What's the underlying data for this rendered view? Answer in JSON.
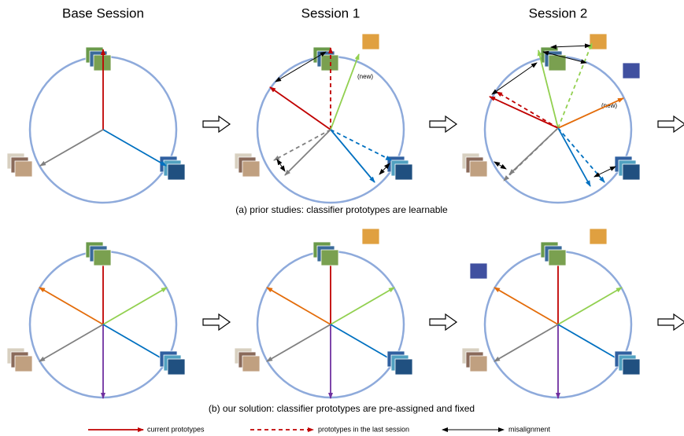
{
  "columns": {
    "titles": [
      "Base Session",
      "Session 1",
      "Session 2"
    ]
  },
  "annotations": {
    "new_session1": "(new)",
    "new_session2": "(new)"
  },
  "captions": {
    "row_a": "(a) prior studies: classifier prototypes are learnable",
    "row_b": "(b) our solution: classifier prototypes are pre-assigned and fixed"
  },
  "legend": {
    "current": "current prototypes",
    "last": "prototypes in the last session",
    "misalignment": "misalignment"
  }
}
